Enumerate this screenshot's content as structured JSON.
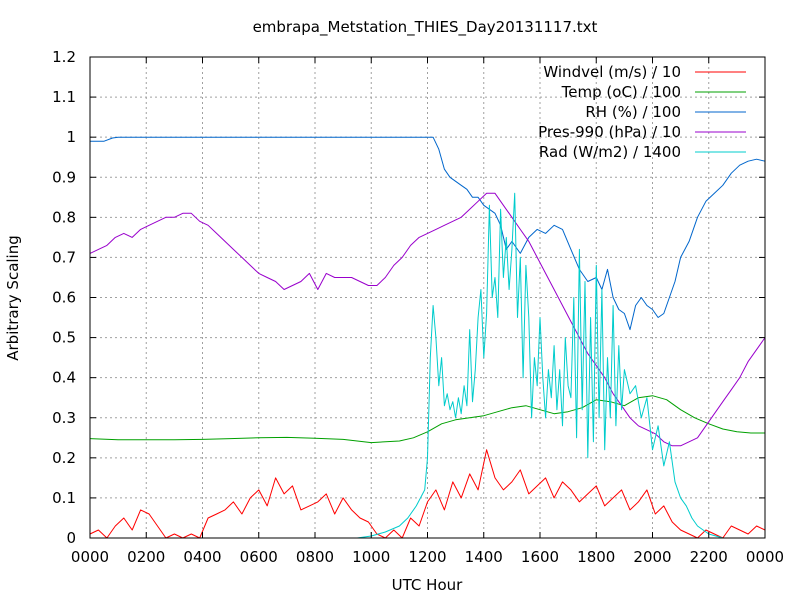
{
  "chart_data": {
    "type": "line",
    "title": "embrapa_Metstation_THIES_Day20131117.txt",
    "xlabel": "UTC Hour",
    "ylabel": "Arbitrary Scaling",
    "xlim": [
      0,
      24
    ],
    "ylim": [
      0,
      1.2
    ],
    "xticks": [
      0,
      2,
      4,
      6,
      8,
      10,
      12,
      14,
      16,
      18,
      20,
      22,
      24
    ],
    "xtick_labels": [
      "0000",
      "0200",
      "0400",
      "0600",
      "0800",
      "1000",
      "1200",
      "1400",
      "1600",
      "1800",
      "2000",
      "2200",
      "0000"
    ],
    "yticks": [
      0,
      0.1,
      0.2,
      0.3,
      0.4,
      0.5,
      0.6,
      0.7,
      0.8,
      0.9,
      1,
      1.1,
      1.2
    ],
    "ytick_labels": [
      "0",
      "0.1",
      "0.2",
      "0.3",
      "0.4",
      "0.5",
      "0.6",
      "0.7",
      "0.8",
      "0.9",
      "1",
      "1.1",
      "1.2"
    ],
    "grid": true,
    "legend_position": "top-right",
    "series": [
      {
        "name": "Windvel (m/s) / 10",
        "color": "#ff0000",
        "x": [
          0,
          0.3,
          0.6,
          0.9,
          1.2,
          1.5,
          1.8,
          2.1,
          2.4,
          2.7,
          3.0,
          3.3,
          3.6,
          3.9,
          4.2,
          4.5,
          4.8,
          5.1,
          5.4,
          5.7,
          6.0,
          6.3,
          6.6,
          6.9,
          7.2,
          7.5,
          7.8,
          8.1,
          8.4,
          8.7,
          9.0,
          9.3,
          9.6,
          9.9,
          10.2,
          10.5,
          10.8,
          11.1,
          11.4,
          11.7,
          12.0,
          12.3,
          12.6,
          12.9,
          13.2,
          13.5,
          13.8,
          14.1,
          14.4,
          14.7,
          15.0,
          15.3,
          15.6,
          15.9,
          16.2,
          16.5,
          16.8,
          17.1,
          17.4,
          17.7,
          18.0,
          18.3,
          18.6,
          18.9,
          19.2,
          19.5,
          19.8,
          20.1,
          20.4,
          20.7,
          21.0,
          21.3,
          21.6,
          21.9,
          22.2,
          22.5,
          22.8,
          23.1,
          23.4,
          23.7,
          24.0
        ],
        "values": [
          0.01,
          0.02,
          0.0,
          0.03,
          0.05,
          0.02,
          0.07,
          0.06,
          0.03,
          0.0,
          0.01,
          0.0,
          0.01,
          0.0,
          0.05,
          0.06,
          0.07,
          0.09,
          0.06,
          0.1,
          0.12,
          0.08,
          0.15,
          0.11,
          0.13,
          0.07,
          0.08,
          0.09,
          0.11,
          0.06,
          0.1,
          0.07,
          0.05,
          0.04,
          0.01,
          0.0,
          0.02,
          0.0,
          0.05,
          0.03,
          0.09,
          0.12,
          0.07,
          0.14,
          0.1,
          0.16,
          0.12,
          0.22,
          0.15,
          0.12,
          0.14,
          0.17,
          0.11,
          0.13,
          0.15,
          0.1,
          0.14,
          0.12,
          0.09,
          0.11,
          0.13,
          0.08,
          0.1,
          0.12,
          0.07,
          0.09,
          0.12,
          0.06,
          0.08,
          0.04,
          0.02,
          0.01,
          0.0,
          0.02,
          0.01,
          0.0,
          0.03,
          0.02,
          0.01,
          0.03,
          0.02
        ]
      },
      {
        "name": "Temp (oC) / 100",
        "color": "#00a000",
        "x": [
          0,
          1,
          2,
          3,
          4,
          5,
          6,
          7,
          8,
          9,
          10,
          11,
          11.5,
          12,
          12.5,
          13,
          13.5,
          14,
          14.5,
          15,
          15.5,
          16,
          16.5,
          17,
          17.5,
          18,
          18.5,
          19,
          19.5,
          20,
          20.5,
          21,
          21.5,
          22,
          22.5,
          23,
          23.5,
          24
        ],
        "values": [
          0.248,
          0.245,
          0.245,
          0.245,
          0.246,
          0.248,
          0.25,
          0.251,
          0.249,
          0.246,
          0.238,
          0.242,
          0.25,
          0.265,
          0.285,
          0.295,
          0.3,
          0.305,
          0.315,
          0.325,
          0.33,
          0.32,
          0.31,
          0.315,
          0.325,
          0.345,
          0.34,
          0.33,
          0.35,
          0.355,
          0.345,
          0.32,
          0.3,
          0.285,
          0.272,
          0.265,
          0.262,
          0.262
        ]
      },
      {
        "name": "RH (%) / 100",
        "color": "#0066cc",
        "x": [
          0,
          0.5,
          0.8,
          1.0,
          2,
          4,
          6,
          8,
          10,
          11,
          12.0,
          12.2,
          12.4,
          12.6,
          12.8,
          13.0,
          13.2,
          13.4,
          13.6,
          13.8,
          14.0,
          14.2,
          14.4,
          14.6,
          14.8,
          15.0,
          15.3,
          15.6,
          15.9,
          16.2,
          16.5,
          16.8,
          17.1,
          17.4,
          17.7,
          18.0,
          18.2,
          18.4,
          18.6,
          18.8,
          19.0,
          19.2,
          19.4,
          19.6,
          19.8,
          20.0,
          20.2,
          20.4,
          20.6,
          20.8,
          21.0,
          21.3,
          21.6,
          21.9,
          22.2,
          22.5,
          22.8,
          23.1,
          23.4,
          23.7,
          24.0
        ],
        "values": [
          0.99,
          0.99,
          0.998,
          1.0,
          1.0,
          1.0,
          1.0,
          1.0,
          1.0,
          1.0,
          1.0,
          1.0,
          0.97,
          0.92,
          0.9,
          0.89,
          0.88,
          0.87,
          0.85,
          0.85,
          0.83,
          0.82,
          0.81,
          0.78,
          0.72,
          0.74,
          0.71,
          0.75,
          0.77,
          0.76,
          0.78,
          0.77,
          0.72,
          0.67,
          0.64,
          0.65,
          0.62,
          0.67,
          0.6,
          0.57,
          0.56,
          0.52,
          0.58,
          0.6,
          0.58,
          0.57,
          0.55,
          0.56,
          0.6,
          0.64,
          0.7,
          0.74,
          0.8,
          0.84,
          0.86,
          0.88,
          0.91,
          0.93,
          0.94,
          0.945,
          0.94
        ]
      },
      {
        "name": "Pres-990 (hPa) / 10",
        "color": "#9900cc",
        "x": [
          0,
          0.3,
          0.6,
          0.9,
          1.2,
          1.5,
          1.8,
          2.1,
          2.4,
          2.7,
          3.0,
          3.3,
          3.6,
          3.9,
          4.2,
          4.5,
          4.8,
          5.1,
          5.4,
          5.7,
          6.0,
          6.3,
          6.6,
          6.9,
          7.2,
          7.5,
          7.8,
          8.1,
          8.4,
          8.7,
          9.0,
          9.3,
          9.6,
          9.9,
          10.2,
          10.5,
          10.8,
          11.1,
          11.4,
          11.7,
          12.0,
          12.3,
          12.6,
          12.9,
          13.2,
          13.5,
          13.8,
          14.1,
          14.4,
          14.7,
          15.0,
          15.3,
          15.6,
          15.9,
          16.2,
          16.5,
          16.8,
          17.1,
          17.4,
          17.7,
          18.0,
          18.3,
          18.6,
          18.9,
          19.2,
          19.5,
          19.8,
          20.1,
          20.4,
          20.7,
          21.0,
          21.3,
          21.6,
          21.9,
          22.2,
          22.5,
          22.8,
          23.1,
          23.4,
          23.7,
          24.0
        ],
        "values": [
          0.71,
          0.72,
          0.73,
          0.75,
          0.76,
          0.75,
          0.77,
          0.78,
          0.79,
          0.8,
          0.8,
          0.81,
          0.81,
          0.79,
          0.78,
          0.76,
          0.74,
          0.72,
          0.7,
          0.68,
          0.66,
          0.65,
          0.64,
          0.62,
          0.63,
          0.64,
          0.66,
          0.62,
          0.66,
          0.65,
          0.65,
          0.65,
          0.64,
          0.63,
          0.63,
          0.65,
          0.68,
          0.7,
          0.73,
          0.75,
          0.76,
          0.77,
          0.78,
          0.79,
          0.8,
          0.82,
          0.84,
          0.86,
          0.86,
          0.83,
          0.8,
          0.77,
          0.74,
          0.7,
          0.66,
          0.62,
          0.58,
          0.54,
          0.5,
          0.46,
          0.43,
          0.4,
          0.36,
          0.33,
          0.3,
          0.28,
          0.27,
          0.26,
          0.24,
          0.23,
          0.23,
          0.24,
          0.25,
          0.28,
          0.31,
          0.34,
          0.37,
          0.4,
          0.44,
          0.47,
          0.5
        ]
      },
      {
        "name": "Rad (W/m2) / 1400",
        "color": "#00cccc",
        "x": [
          0,
          1,
          2,
          3,
          4,
          5,
          6,
          7,
          8,
          9,
          9.5,
          10.0,
          10.5,
          11.0,
          11.3,
          11.6,
          11.9,
          12.0,
          12.1,
          12.2,
          12.3,
          12.4,
          12.5,
          12.6,
          12.7,
          12.8,
          12.9,
          13.0,
          13.1,
          13.2,
          13.3,
          13.4,
          13.5,
          13.6,
          13.7,
          13.8,
          13.9,
          14.0,
          14.1,
          14.2,
          14.3,
          14.4,
          14.5,
          14.6,
          14.7,
          14.8,
          14.9,
          15.0,
          15.1,
          15.2,
          15.3,
          15.4,
          15.5,
          15.6,
          15.7,
          15.8,
          15.9,
          16.0,
          16.1,
          16.2,
          16.3,
          16.4,
          16.5,
          16.6,
          16.7,
          16.8,
          16.9,
          17.0,
          17.1,
          17.2,
          17.3,
          17.4,
          17.5,
          17.6,
          17.7,
          17.8,
          17.9,
          18.0,
          18.1,
          18.2,
          18.3,
          18.4,
          18.5,
          18.6,
          18.7,
          18.8,
          18.9,
          19.0,
          19.2,
          19.4,
          19.6,
          19.8,
          20.0,
          20.2,
          20.4,
          20.6,
          20.8,
          21.0,
          21.2,
          21.4,
          21.6,
          22,
          22.5,
          23,
          23.5,
          24
        ],
        "values": [
          0.0,
          0.0,
          0.0,
          0.0,
          0.0,
          0.0,
          0.0,
          0.0,
          0.0,
          0.0,
          0.0,
          0.005,
          0.015,
          0.03,
          0.05,
          0.08,
          0.12,
          0.2,
          0.45,
          0.58,
          0.5,
          0.38,
          0.45,
          0.33,
          0.36,
          0.32,
          0.34,
          0.3,
          0.35,
          0.31,
          0.38,
          0.33,
          0.52,
          0.34,
          0.42,
          0.55,
          0.62,
          0.45,
          0.56,
          0.83,
          0.6,
          0.65,
          0.55,
          0.82,
          0.65,
          0.75,
          0.62,
          0.72,
          0.86,
          0.55,
          0.7,
          0.4,
          0.68,
          0.55,
          0.3,
          0.45,
          0.38,
          0.55,
          0.4,
          0.3,
          0.42,
          0.35,
          0.48,
          0.32,
          0.42,
          0.28,
          0.5,
          0.38,
          0.35,
          0.6,
          0.25,
          0.72,
          0.32,
          0.64,
          0.2,
          0.55,
          0.24,
          0.68,
          0.3,
          0.62,
          0.22,
          0.45,
          0.3,
          0.58,
          0.28,
          0.48,
          0.32,
          0.42,
          0.36,
          0.38,
          0.3,
          0.35,
          0.22,
          0.28,
          0.18,
          0.24,
          0.14,
          0.1,
          0.08,
          0.05,
          0.03,
          0.01,
          0.0,
          0.0,
          0.0,
          0.0
        ]
      }
    ]
  }
}
